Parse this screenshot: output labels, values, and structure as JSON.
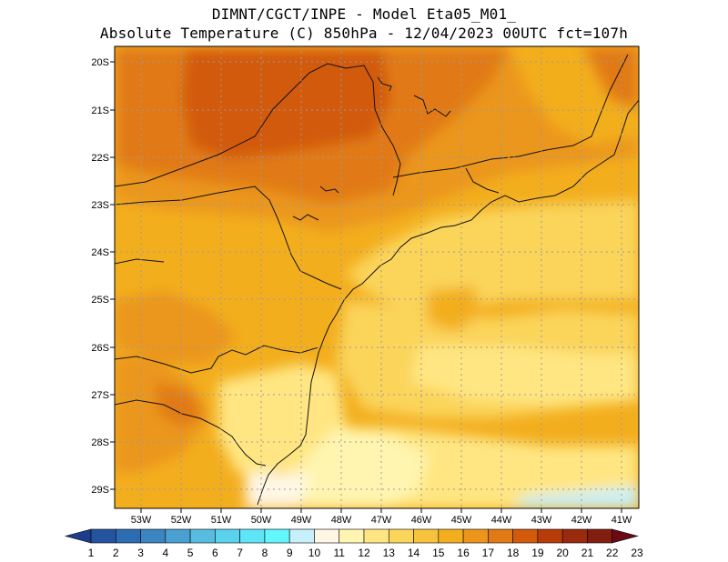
{
  "header": {
    "line1": "DIMNT/CGCT/INPE -  Model Eta05_M01_",
    "line2": "Absolute Temperature (C) 850hPa -  12/04/2023 00UTC fct=107h"
  },
  "map": {
    "lat_labels": [
      "20S",
      "21S",
      "22S",
      "23S",
      "24S",
      "25S",
      "26S",
      "27S",
      "28S",
      "29S"
    ],
    "lon_labels": [
      "53W",
      "52W",
      "51W",
      "50W",
      "49W",
      "48W",
      "47W",
      "46W",
      "45W",
      "44W",
      "43W",
      "42W",
      "41W"
    ],
    "lon_range": [
      -53.7,
      -40.6
    ],
    "lat_range": [
      -29.4,
      -19.7
    ]
  },
  "colorbar": {
    "labels": [
      "1",
      "2",
      "3",
      "4",
      "5",
      "6",
      "7",
      "8",
      "9",
      "10",
      "11",
      "12",
      "13",
      "14",
      "15",
      "16",
      "17",
      "18",
      "19",
      "20",
      "21",
      "22",
      "23"
    ],
    "colors": [
      "#1e3c8c",
      "#2453a0",
      "#2c6cb2",
      "#3c84c2",
      "#4aa0d2",
      "#58bce0",
      "#5ad2ee",
      "#5ee6f8",
      "#62f6ff",
      "#c8f0fa",
      "#fff6e4",
      "#fff5b0",
      "#ffe682",
      "#fbd45a",
      "#f7c23c",
      "#f3ae1e",
      "#eb961a",
      "#e17a14",
      "#d25a0a",
      "#b83c0a",
      "#9a2a0c",
      "#821e10",
      "#6a0a14"
    ]
  }
}
